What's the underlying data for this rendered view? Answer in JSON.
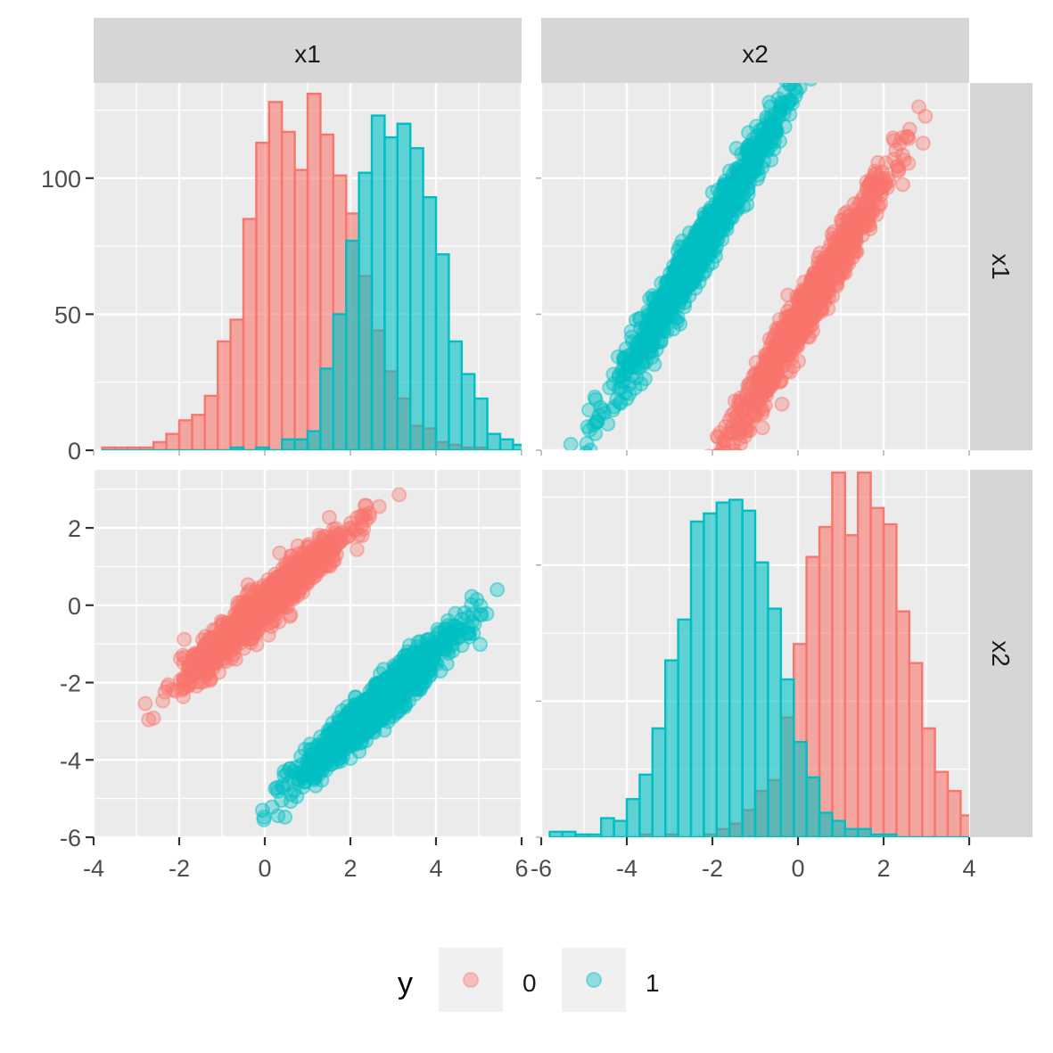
{
  "chart_data": {
    "type": "pairs",
    "facet_labels": {
      "cols": [
        "x1",
        "x2"
      ],
      "rows": [
        "x1",
        "x2"
      ]
    },
    "colors": {
      "0": "#F8766D",
      "1": "#00BFC4"
    },
    "legend": {
      "title": "y",
      "position": "bottom",
      "entries": [
        "0",
        "1"
      ]
    },
    "panels": [
      {
        "id": "x1-x1",
        "type": "histogram",
        "xlim": [
          -4,
          6
        ],
        "ylim": [
          0,
          135
        ],
        "y_ticks": [
          "0",
          "50",
          "100"
        ],
        "bin_start": -3.8,
        "bin_width": 0.3,
        "series": [
          {
            "name": "0",
            "values": [
              1,
              1,
              1,
              1,
              3,
              6,
              11,
              13,
              20,
              40,
              48,
              85,
              113,
              128,
              117,
              103,
              131,
              116,
              101,
              87,
              64,
              44,
              29,
              19,
              9,
              8,
              3,
              2,
              1,
              1,
              0,
              0,
              0,
              0
            ]
          },
          {
            "name": "1",
            "values": [
              0,
              0,
              0,
              0,
              0,
              0,
              0,
              0,
              0,
              0,
              1,
              0,
              1,
              0,
              4,
              4,
              7,
              30,
              50,
              77,
              102,
              123,
              115,
              120,
              111,
              93,
              72,
              40,
              28,
              19,
              6,
              4,
              2,
              1
            ]
          }
        ]
      },
      {
        "id": "x1-x2",
        "type": "scatter",
        "xlim": [
          -6,
          4
        ],
        "ylim": [
          0,
          135
        ],
        "series": [
          {
            "name": "0",
            "center": [
              0.2,
              52
            ],
            "spread": [
              1.0,
              26
            ],
            "range": [
              -3.2,
              3.6
            ]
          },
          {
            "name": "1",
            "center": [
              -2.3,
              74
            ],
            "spread": [
              1.0,
              26
            ],
            "range": [
              -5.7,
              0.4
            ]
          }
        ]
      },
      {
        "id": "x2-x1",
        "type": "scatter",
        "xlim": [
          -4,
          6
        ],
        "ylim": [
          -6,
          3.5
        ],
        "y_ticks": [
          "-6",
          "-4",
          "-2",
          "0",
          "2"
        ],
        "x_ticks": [
          "-4",
          "-2",
          "0",
          "2",
          "4",
          "6"
        ],
        "series": [
          {
            "name": "0",
            "center": [
              0,
              0
            ],
            "spread": [
              0.95,
              0.95
            ],
            "range": [
              -3.8,
              3.4
            ]
          },
          {
            "name": "1",
            "center": [
              2.6,
              -2.6
            ],
            "spread": [
              0.95,
              0.95
            ],
            "range": [
              -0.8,
              5.6
            ]
          }
        ]
      },
      {
        "id": "x2-x2",
        "type": "histogram",
        "xlim": [
          -6,
          4
        ],
        "ylim": [
          0,
          135
        ],
        "x_ticks": [
          "-6",
          "-4",
          "-2",
          "0",
          "2",
          "4"
        ],
        "bin_start": -5.8,
        "bin_width": 0.3,
        "series": [
          {
            "name": "0",
            "values": [
              0,
              0,
              0,
              0,
              0,
              0,
              0,
              1,
              0,
              1,
              0,
              0,
              1,
              3,
              5,
              10,
              17,
              21,
              44,
              71,
              103,
              114,
              134,
              111,
              134,
              121,
              115,
              83,
              64,
              40,
              24,
              17,
              8,
              7,
              3,
              2,
              1,
              1
            ]
          },
          {
            "name": "1",
            "values": [
              2,
              2,
              1,
              1,
              7,
              6,
              14,
              23,
              40,
              65,
              80,
              116,
              119,
              123,
              124,
              120,
              101,
              84,
              58,
              35,
              22,
              9,
              6,
              3,
              3,
              1,
              1,
              0,
              0,
              0,
              0,
              0,
              0,
              0,
              0,
              0,
              0,
              0
            ]
          }
        ]
      }
    ]
  }
}
